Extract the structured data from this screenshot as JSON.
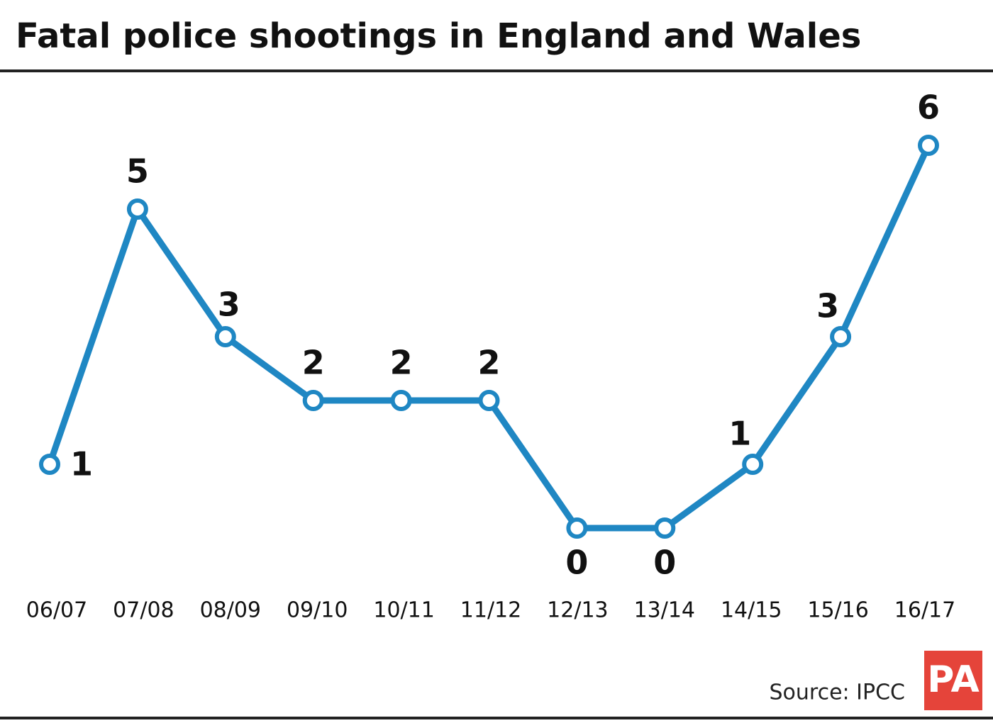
{
  "chart_data": {
    "type": "line",
    "title": "Fatal police shootings in England and Wales",
    "categories": [
      "06/07",
      "07/08",
      "08/09",
      "09/10",
      "10/11",
      "11/12",
      "12/13",
      "13/14",
      "14/15",
      "15/16",
      "16/17"
    ],
    "values": [
      1,
      5,
      3,
      2,
      2,
      2,
      0,
      0,
      1,
      3,
      6
    ],
    "color": "#1f87c3",
    "source": "Source: IPCC",
    "logo": "PA"
  }
}
